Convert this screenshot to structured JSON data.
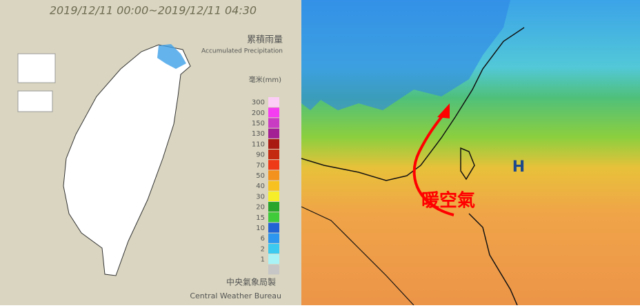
{
  "left_panel": {
    "title": "2019/12/11 00:00~2019/12/11 04:30",
    "legend_title_zh": "累積雨量",
    "legend_title_en": "Accumulated Precipitation",
    "unit": "毫米(mm)",
    "levels": [
      {
        "label": "300",
        "color": "#fccdf6"
      },
      {
        "label": "200",
        "color": "#f53cf0"
      },
      {
        "label": "150",
        "color": "#c83bc2"
      },
      {
        "label": "130",
        "color": "#a21f94"
      },
      {
        "label": "110",
        "color": "#a81a12"
      },
      {
        "label": "90",
        "color": "#c42a10"
      },
      {
        "label": "70",
        "color": "#ee3a16"
      },
      {
        "label": "50",
        "color": "#f3921c"
      },
      {
        "label": "40",
        "color": "#f7c21f"
      },
      {
        "label": "30",
        "color": "#f7ee2a"
      },
      {
        "label": "20",
        "color": "#29a52c"
      },
      {
        "label": "15",
        "color": "#3fcb3a"
      },
      {
        "label": "10",
        "color": "#2264d4"
      },
      {
        "label": "6",
        "color": "#2d96ee"
      },
      {
        "label": "2",
        "color": "#3ccaf0"
      },
      {
        "label": "1",
        "color": "#a9f3f6"
      },
      {
        "label": "",
        "color": "#c6c6c6"
      }
    ],
    "credit_zh": "中央氣象局製",
    "credit_en": "Central Weather Bureau"
  },
  "right_panel": {
    "annotation": "暖空氣",
    "pressure_label": "H"
  }
}
